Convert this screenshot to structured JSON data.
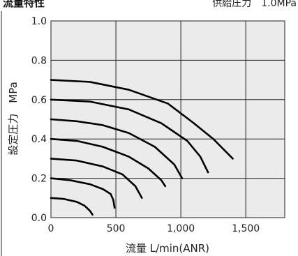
{
  "header": {
    "left": "流量特性",
    "right": "供給圧力　1.0MPa"
  },
  "chart_data": {
    "type": "line",
    "xlabel": "流量 L/min(ANR)",
    "ylabel": "設定圧力　MPa",
    "xlim": [
      0,
      1800
    ],
    "ylim": [
      0,
      1.0
    ],
    "x_ticks": [
      0,
      500,
      1000,
      1500
    ],
    "x_tick_labels": [
      "0",
      "500",
      "1,000",
      "1,500"
    ],
    "y_ticks": [
      0,
      0.2,
      0.4,
      0.6,
      0.8,
      1.0
    ],
    "y_tick_labels": [
      "0.0",
      "0.2",
      "0.4",
      "0.6",
      "0.8",
      "1.0"
    ],
    "grid": true,
    "colors": {
      "plot_bg": "#ebebeb",
      "grid": "#222222",
      "line": "#000000"
    },
    "series": [
      {
        "x": [
          0,
          100,
          200,
          260,
          300,
          320
        ],
        "y": [
          0.1,
          0.095,
          0.08,
          0.06,
          0.035,
          0.015
        ]
      },
      {
        "x": [
          0,
          150,
          300,
          400,
          460,
          480,
          490
        ],
        "y": [
          0.2,
          0.19,
          0.17,
          0.145,
          0.12,
          0.09,
          0.05
        ]
      },
      {
        "x": [
          0,
          200,
          400,
          550,
          650,
          700
        ],
        "y": [
          0.3,
          0.29,
          0.26,
          0.22,
          0.16,
          0.1
        ]
      },
      {
        "x": [
          0,
          200,
          400,
          600,
          750,
          850,
          880
        ],
        "y": [
          0.4,
          0.39,
          0.36,
          0.31,
          0.25,
          0.19,
          0.16
        ]
      },
      {
        "x": [
          0,
          200,
          400,
          600,
          800,
          950,
          1010
        ],
        "y": [
          0.5,
          0.49,
          0.47,
          0.43,
          0.36,
          0.27,
          0.2
        ]
      },
      {
        "x": [
          0,
          300,
          600,
          850,
          1050,
          1150,
          1210
        ],
        "y": [
          0.6,
          0.59,
          0.55,
          0.48,
          0.39,
          0.31,
          0.23
        ]
      },
      {
        "x": [
          0,
          300,
          600,
          900,
          1100,
          1250,
          1310,
          1400
        ],
        "y": [
          0.7,
          0.69,
          0.65,
          0.58,
          0.48,
          0.4,
          0.36,
          0.3
        ]
      }
    ]
  }
}
